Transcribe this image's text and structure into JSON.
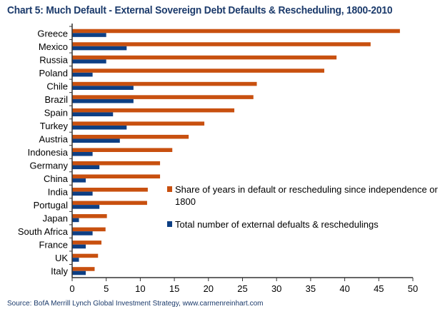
{
  "chart_data": {
    "type": "bar",
    "orientation": "horizontal",
    "title": "Chart 5: Much Default - External Sovereign Debt Defaults & Rescheduling, 1800-2010",
    "source": "Source: BofA Merrill Lynch Global Investment Strategy, www.carmenreinhart.com",
    "categories": [
      "Greece",
      "Mexico",
      "Russia",
      "Poland",
      "Chile",
      "Brazil",
      "Spain",
      "Turkey",
      "Austria",
      "Indonesia",
      "Germany",
      "China",
      "India",
      "Portugal",
      "Japan",
      "South Africa",
      "France",
      "UK",
      "Italy"
    ],
    "series": [
      {
        "name": "Share of years in default or rescheduling since independence or 1800",
        "color": "#c8500f",
        "values": [
          48.1,
          43.8,
          38.8,
          37.0,
          27.1,
          26.6,
          23.8,
          19.4,
          17.1,
          14.7,
          12.9,
          12.9,
          11.1,
          11.0,
          5.1,
          4.9,
          4.3,
          3.8,
          3.3
        ]
      },
      {
        "name": "Total number of external defualts & reschedulings",
        "color": "#0d3f84",
        "values": [
          5,
          8,
          5,
          3,
          9,
          9,
          6,
          8,
          7,
          3,
          4,
          2,
          3,
          4,
          1,
          3,
          2,
          1,
          2
        ]
      }
    ],
    "legend_lines": [
      [
        "Share of years in default or rescheduling since independence or",
        "1800"
      ],
      [
        "Total number of external defualts & reschedulings"
      ]
    ],
    "xlim": [
      0,
      50
    ],
    "xticks": [
      "0",
      "5",
      "10",
      "15",
      "20",
      "25",
      "30",
      "35",
      "40",
      "45",
      "50"
    ],
    "grid": false,
    "legend_placement": "right-center"
  }
}
